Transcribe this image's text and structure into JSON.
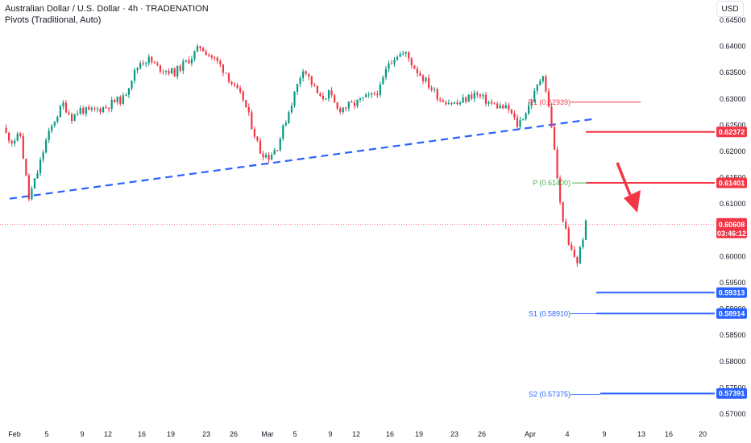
{
  "header": {
    "title": "Australian Dollar / U.S. Dollar · 4h · TRADENATION",
    "indicator": "Pivots (Traditional, Auto)"
  },
  "currency": "USD",
  "colors": {
    "up": "#089981",
    "down": "#f23645",
    "trendline": "#2962ff",
    "resistance": "#f23645",
    "support": "#2962ff",
    "pivot_label": "#4caf50",
    "price_line": "#f23645",
    "arrow": "#f23645"
  },
  "chart_data": {
    "type": "candlestick",
    "instrument": "AUDUSD",
    "timeframe": "4h",
    "y_ticks": [
      "0.64500",
      "0.64000",
      "0.63500",
      "0.63000",
      "0.62500",
      "0.62000",
      "0.61500",
      "0.61000",
      "0.60500",
      "0.60000",
      "0.59500",
      "0.59000",
      "0.58500",
      "0.58000",
      "0.57500",
      "0.57000"
    ],
    "x_ticks": [
      "Feb",
      "5",
      "9",
      "12",
      "16",
      "19",
      "23",
      "26",
      "Mar",
      "5",
      "9",
      "12",
      "16",
      "19",
      "23",
      "26",
      "Apr",
      "4",
      "9",
      "13",
      "16",
      "20"
    ],
    "ylim": [
      0.5685,
      0.6475
    ],
    "close_path": [
      [
        "Feb",
        0.624
      ],
      [
        "Feb+0.5",
        0.622
      ],
      [
        "Feb+1",
        0.623
      ],
      [
        "2",
        0.611
      ],
      [
        "3",
        0.616
      ],
      [
        "4",
        0.622
      ],
      [
        "5",
        0.626
      ],
      [
        "6",
        0.629
      ],
      [
        "7",
        0.6265
      ],
      [
        "8",
        0.628
      ],
      [
        "9",
        0.6275
      ],
      [
        "10",
        0.628
      ],
      [
        "11",
        0.6285
      ],
      [
        "12",
        0.6295
      ],
      [
        "13",
        0.63
      ],
      [
        "14",
        0.634
      ],
      [
        "15",
        0.637
      ],
      [
        "16",
        0.6375
      ],
      [
        "17",
        0.636
      ],
      [
        "18",
        0.6355
      ],
      [
        "19",
        0.635
      ],
      [
        "20",
        0.6365
      ],
      [
        "21",
        0.638
      ],
      [
        "22",
        0.64
      ],
      [
        "23",
        0.6385
      ],
      [
        "24",
        0.637
      ],
      [
        "25",
        0.635
      ],
      [
        "26",
        0.632
      ],
      [
        "27",
        0.63
      ],
      [
        "28",
        0.625
      ],
      [
        "Mar",
        0.62
      ],
      [
        "Mar+1",
        0.619
      ],
      [
        "3",
        0.621
      ],
      [
        "4",
        0.626
      ],
      [
        "5",
        0.631
      ],
      [
        "6",
        0.636
      ],
      [
        "7",
        0.633
      ],
      [
        "8",
        0.63
      ],
      [
        "9",
        0.631
      ],
      [
        "10",
        0.628
      ],
      [
        "11",
        0.6285
      ],
      [
        "12",
        0.629
      ],
      [
        "13",
        0.63
      ],
      [
        "14",
        0.6305
      ],
      [
        "15",
        0.632
      ],
      [
        "16",
        0.637
      ],
      [
        "17",
        0.6385
      ],
      [
        "18",
        0.6385
      ],
      [
        "19",
        0.636
      ],
      [
        "20",
        0.634
      ],
      [
        "21",
        0.632
      ],
      [
        "22",
        0.63
      ],
      [
        "23",
        0.6295
      ],
      [
        "24",
        0.629
      ],
      [
        "25",
        0.63
      ],
      [
        "26",
        0.631
      ],
      [
        "27",
        0.63
      ],
      [
        "28",
        0.629
      ],
      [
        "29",
        0.6285
      ],
      [
        "30",
        0.628
      ],
      [
        "31",
        0.625
      ],
      [
        "Apr",
        0.6275
      ],
      [
        "Apr+1",
        0.631
      ],
      [
        "2",
        0.635
      ],
      [
        "3",
        0.625
      ],
      [
        "Apr+3.5",
        0.61
      ],
      [
        "4",
        0.602
      ],
      [
        "Apr+4.5",
        0.599
      ],
      [
        "5",
        0.6061
      ]
    ],
    "current_price": {
      "value": "0.60608",
      "timer": "03:46:12",
      "level": 0.60608
    },
    "price_labels": [
      {
        "id": "resistance-upper",
        "text": "0.62372",
        "level": 0.62372,
        "color": "#f23645"
      },
      {
        "id": "resistance-pivot",
        "text": "0.61401",
        "level": 0.61401,
        "color": "#f23645"
      },
      {
        "id": "support-upper",
        "text": "0.59313",
        "level": 0.59313,
        "color": "#2962ff"
      },
      {
        "id": "support-s1",
        "text": "0.58914",
        "level": 0.58914,
        "color": "#2962ff"
      },
      {
        "id": "support-s2",
        "text": "0.57391",
        "level": 0.57391,
        "color": "#2962ff"
      }
    ],
    "pivots": [
      {
        "label": "R1 (0.62939)",
        "level": 0.62939,
        "color": "#f23645"
      },
      {
        "label": "P (0.61400)",
        "level": 0.614,
        "color": "#4caf50"
      },
      {
        "label": "S1 (0.58910)",
        "level": 0.5891,
        "color": "#2962ff"
      },
      {
        "label": "S2 (0.57375)",
        "level": 0.57375,
        "color": "#2962ff"
      }
    ]
  }
}
